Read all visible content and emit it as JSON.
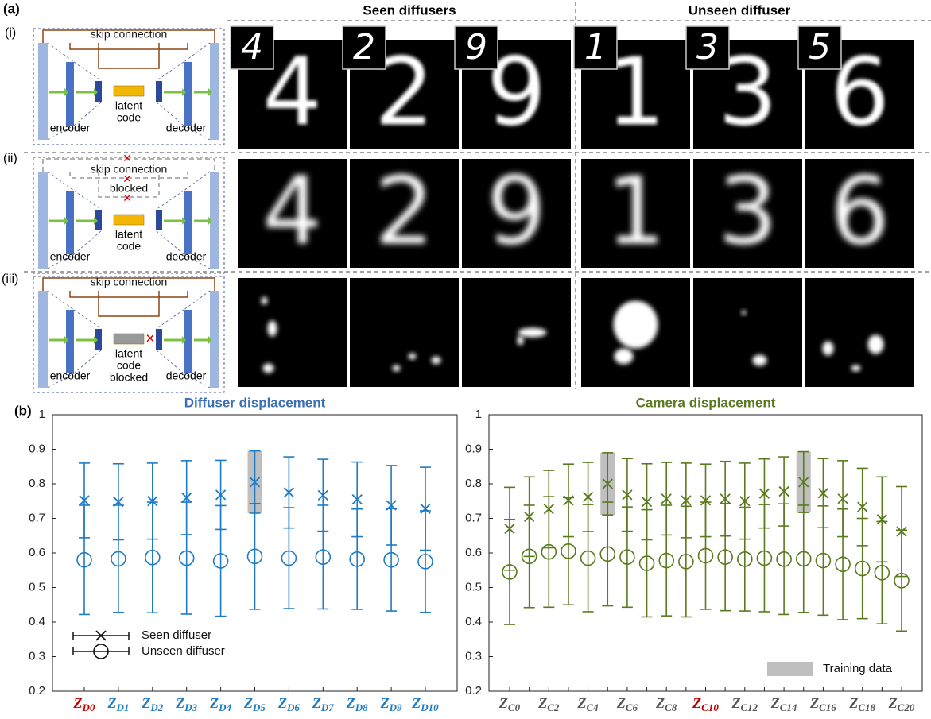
{
  "panel_a": {
    "label": "(a)",
    "row_labels": [
      "(i)",
      "(ii)",
      "(iii)"
    ],
    "headers": [
      "Seen diffusers",
      "Unseen diffuser"
    ],
    "diagrams": [
      {
        "skip": [
          "skip connection"
        ],
        "latent": [
          "latent",
          "code"
        ],
        "encoder": "encoder",
        "decoder": "decoder"
      },
      {
        "skip": [
          "skip connection",
          "blocked"
        ],
        "latent": [
          "latent",
          "code"
        ],
        "encoder": "encoder",
        "decoder": "decoder"
      },
      {
        "skip": [
          "skip connection"
        ],
        "latent": [
          "latent",
          "code",
          "blocked"
        ],
        "encoder": "encoder",
        "decoder": "decoder"
      }
    ],
    "ground_truth": [
      "4",
      "2",
      "9",
      "1",
      "3",
      "5"
    ],
    "reconstructions": [
      "4",
      "2",
      "9",
      "1",
      "3",
      "6"
    ]
  },
  "panel_b_label": "(b)",
  "chart_data": [
    {
      "type": "errorbar",
      "title": "Diffuser displacement",
      "title_color": "#3b6fb6",
      "categories": [
        "ZD0",
        "ZD1",
        "ZD2",
        "ZD3",
        "ZD4",
        "ZD5",
        "ZD6",
        "ZD7",
        "ZD8",
        "ZD9",
        "ZD10"
      ],
      "category_color": "#1f7cc4",
      "highlight_category": 0,
      "highlight_color": "#c00000",
      "series": [
        {
          "name": "Seen diffuser",
          "marker": "x",
          "color": "#1f7cc4",
          "values": [
            0.752,
            0.748,
            0.75,
            0.76,
            0.768,
            0.805,
            0.775,
            0.767,
            0.755,
            0.738,
            0.728
          ],
          "errors": [
            0.108,
            0.11,
            0.11,
            0.107,
            0.1,
            0.09,
            0.103,
            0.104,
            0.108,
            0.115,
            0.12
          ]
        },
        {
          "name": "Unseen diffuser",
          "marker": "o",
          "color": "#1f7cc4",
          "values": [
            0.58,
            0.583,
            0.587,
            0.585,
            0.577,
            0.59,
            0.585,
            0.588,
            0.582,
            0.58,
            0.575
          ],
          "errors": [
            0.158,
            0.155,
            0.16,
            0.162,
            0.16,
            0.153,
            0.146,
            0.15,
            0.145,
            0.148,
            0.147
          ]
        }
      ],
      "training_indices": [
        5
      ],
      "ylim": [
        0.2,
        1
      ],
      "yticks": [
        0.2,
        0.3,
        0.4,
        0.5,
        0.6,
        0.7,
        0.8,
        0.9,
        1
      ],
      "legend": "lower left"
    },
    {
      "type": "errorbar",
      "title": "Camera displacement",
      "title_color": "#5a7a22",
      "categories": [
        "ZC0",
        null,
        "ZC2",
        null,
        "ZC4",
        null,
        "ZC6",
        null,
        "ZC8",
        null,
        "ZC10",
        null,
        "ZC12",
        null,
        "ZC14",
        null,
        "ZC16",
        null,
        "ZC18",
        null,
        "ZC20"
      ],
      "category_color": "#555555",
      "highlight_category": 10,
      "highlight_color": "#c00000",
      "series": [
        {
          "marker": "x",
          "color": "#5a7a1e",
          "values": [
            0.67,
            0.705,
            0.727,
            0.752,
            0.762,
            0.8,
            0.768,
            0.748,
            0.757,
            0.752,
            0.752,
            0.757,
            0.75,
            0.772,
            0.778,
            0.805,
            0.773,
            0.757,
            0.733,
            0.697,
            0.662
          ],
          "errors": [
            0.12,
            0.115,
            0.112,
            0.105,
            0.1,
            0.09,
            0.105,
            0.11,
            0.105,
            0.108,
            0.105,
            0.108,
            0.11,
            0.1,
            0.1,
            0.088,
            0.1,
            0.11,
            0.112,
            0.123,
            0.13
          ]
        },
        {
          "marker": "o",
          "color": "#5a7a1e",
          "values": [
            0.545,
            0.59,
            0.603,
            0.605,
            0.585,
            0.597,
            0.588,
            0.57,
            0.578,
            0.575,
            0.592,
            0.588,
            0.582,
            0.585,
            0.582,
            0.583,
            0.578,
            0.567,
            0.555,
            0.543,
            0.52
          ],
          "errors": [
            0.152,
            0.148,
            0.16,
            0.155,
            0.155,
            0.15,
            0.145,
            0.155,
            0.16,
            0.16,
            0.155,
            0.155,
            0.15,
            0.155,
            0.16,
            0.155,
            0.158,
            0.16,
            0.145,
            0.148,
            0.146
          ]
        }
      ],
      "training_indices": [
        5,
        15
      ],
      "training_label": "Training data",
      "ylim": [
        0.2,
        1
      ],
      "yticks": [
        0.2,
        0.3,
        0.4,
        0.5,
        0.6,
        0.7,
        0.8,
        0.9,
        1
      ],
      "legend": "lower right"
    }
  ]
}
